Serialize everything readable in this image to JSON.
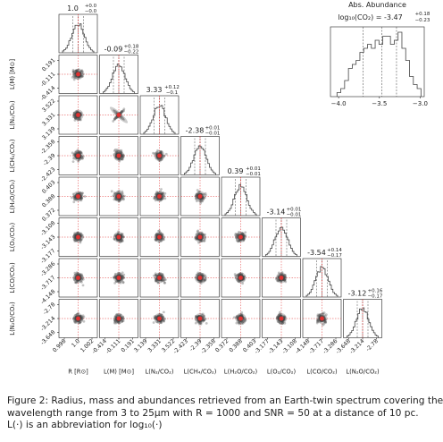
{
  "chart_data": {
    "type": "corner-plot",
    "parameters": [
      {
        "xlabel": "R [R⊙]",
        "ylabel": "",
        "title_value": "1.0",
        "err_plus": "+0.0",
        "err_minus": "−0.0",
        "ticks": [
          "0.998",
          "1.0",
          "1.002"
        ]
      },
      {
        "xlabel": "L(M) [M⊙]",
        "ylabel": "L(M) [M⊙]",
        "title_value": "-0.09",
        "err_plus": "+0.18",
        "err_minus": "−0.22",
        "ticks": [
          "-0.414",
          "-0.111",
          "0.191"
        ]
      },
      {
        "xlabel": "L(N₂/CO₂)",
        "ylabel": "L(N₂/CO₂)",
        "title_value": "3.33",
        "err_plus": "+0.12",
        "err_minus": "−0.1",
        "ticks": [
          "3.139",
          "3.331",
          "3.522"
        ]
      },
      {
        "xlabel": "L(CH₄/CO₂)",
        "ylabel": "L(CH₄/CO₂)",
        "title_value": "-2.38",
        "err_plus": "+0.01",
        "err_minus": "−0.01",
        "ticks": [
          "-2.423",
          "-2.39",
          "-2.358"
        ]
      },
      {
        "xlabel": "L(H₂O/CO₂)",
        "ylabel": "L(H₂O/CO₂)",
        "title_value": "0.39",
        "err_plus": "+0.01",
        "err_minus": "−0.01",
        "ticks": [
          "0.372",
          "0.388",
          "0.403"
        ]
      },
      {
        "xlabel": "L(O₂/CO₂)",
        "ylabel": "L(O₂/CO₂)",
        "title_value": "-3.14",
        "err_plus": "+0.01",
        "err_minus": "−0.01",
        "ticks": [
          "-3.177",
          "-3.143",
          "-3.108"
        ]
      },
      {
        "xlabel": "L(CO/CO₂)",
        "ylabel": "L(CO/CO₂)",
        "title_value": "-3.54",
        "err_plus": "+0.14",
        "err_minus": "−0.17",
        "ticks": [
          "-4.148",
          "-3.717",
          "-3.286"
        ]
      },
      {
        "xlabel": "L(N₂O/CO₂)",
        "ylabel": "L(N₂O/CO₂)",
        "title_value": "-3.12",
        "err_plus": "+0.16",
        "err_minus": "−0.17",
        "ticks": [
          "-3.648",
          "-3.214",
          "-2.78"
        ]
      }
    ],
    "grid_y_ticks": [
      [],
      [
        "0.191",
        "-0.111",
        "-0.414"
      ],
      [
        "3.522",
        "3.331",
        "3.139"
      ],
      [
        "-2.358",
        "-2.39",
        "-2.423"
      ],
      [
        "0.403",
        "0.388",
        "0.372"
      ],
      [
        "-3.108",
        "-3.143",
        "-3.177"
      ],
      [
        "-3.286",
        "-3.717",
        "-4.148"
      ],
      [
        "-2.78",
        "-3.214",
        "-3.648"
      ]
    ],
    "inset": {
      "title": "Abs. Abundance",
      "subtitle": "log₁₀(CO₂) = -3.47",
      "err_plus": "+0.18",
      "err_minus": "−0.23",
      "xlim": [
        -4.1,
        -2.95
      ],
      "ticks": [
        -4.0,
        -3.5,
        -3.0
      ],
      "tick_labels": [
        "−4.0",
        "−3.5",
        "−3.0"
      ],
      "counts": [
        1,
        2,
        4,
        7,
        8,
        9,
        11,
        12,
        13,
        12,
        14,
        13,
        15,
        15,
        13,
        14,
        16,
        12,
        9,
        5,
        3,
        2
      ],
      "edges": [
        -4.02,
        -2.99
      ],
      "quantiles": [
        -3.7,
        -3.47,
        -3.29
      ]
    },
    "colors": {
      "truth": "#e03030",
      "hist": "#444444",
      "density": "#555555",
      "quantile": "#555555"
    }
  },
  "caption": {
    "line1": "Figure 2: Radius, mass and abundances retrieved from an Earth-twin spectrum covering the",
    "line2": "wavelength range from 3 to 25µm with R = 1000 and SNR = 50 at a distance of 10 pc.",
    "line3": "L(·) is an abbreviation for log₁₀(·)"
  }
}
